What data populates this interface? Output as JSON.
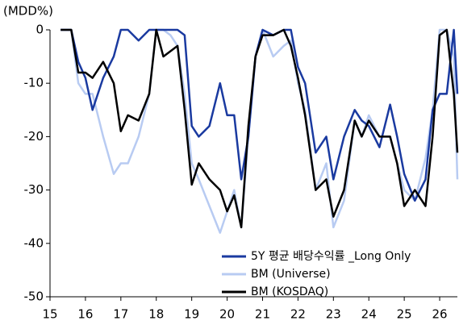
{
  "chart_data": {
    "type": "line",
    "y_label": "(MDD%)",
    "x": [
      15.3,
      15.6,
      15.8,
      16.0,
      16.2,
      16.5,
      16.8,
      17.0,
      17.2,
      17.5,
      17.8,
      18.0,
      18.2,
      18.4,
      18.6,
      18.8,
      19.0,
      19.2,
      19.5,
      19.8,
      20.0,
      20.2,
      20.4,
      20.6,
      20.8,
      21.0,
      21.3,
      21.6,
      21.8,
      22.0,
      22.2,
      22.5,
      22.8,
      23.0,
      23.3,
      23.6,
      23.8,
      24.0,
      24.3,
      24.6,
      24.8,
      25.0,
      25.3,
      25.6,
      25.8,
      26.0,
      26.2,
      26.4,
      26.5
    ],
    "series": [
      {
        "name": "5Y 평균 배당수익률 _Long Only",
        "color": "#1a3aa0",
        "values": [
          0,
          0,
          -6,
          -9,
          -15,
          -9,
          -5,
          0,
          0,
          -2,
          0,
          0,
          0,
          0,
          0,
          -1,
          -18,
          -20,
          -18,
          -10,
          -16,
          -16,
          -28,
          -20,
          -5,
          0,
          -1,
          0,
          0,
          -7,
          -10,
          -23,
          -20,
          -28,
          -20,
          -15,
          -17,
          -18,
          -22,
          -14,
          -20,
          -27,
          -32,
          -28,
          -15,
          -12,
          -12,
          0,
          -12
        ]
      },
      {
        "name": "BM (Universe)",
        "color": "#b8cbf2",
        "values": [
          0,
          0,
          -10,
          -12,
          -12,
          -20,
          -27,
          -25,
          -25,
          -20,
          -12,
          0,
          0,
          -1,
          -3,
          -12,
          -25,
          -28,
          -33,
          -38,
          -34,
          -30,
          -37,
          -20,
          -5,
          0,
          -5,
          -3,
          -2,
          -10,
          -15,
          -30,
          -25,
          -37,
          -32,
          -17,
          -20,
          -16,
          -20,
          -20,
          -25,
          -30,
          -32,
          -24,
          -15,
          0,
          0,
          -5,
          -28
        ]
      },
      {
        "name": "BM (KOSDAQ)",
        "color": "#000000",
        "values": [
          0,
          0,
          -8,
          -8,
          -9,
          -6,
          -10,
          -19,
          -16,
          -17,
          -12,
          0,
          -5,
          -4,
          -3,
          -15,
          -29,
          -25,
          -28,
          -30,
          -34,
          -31,
          -37,
          -18,
          -5,
          -1,
          -1,
          0,
          -3,
          -9,
          -16,
          -30,
          -28,
          -35,
          -30,
          -17,
          -20,
          -17,
          -20,
          -20,
          -25,
          -33,
          -30,
          -33,
          -20,
          -1,
          0,
          -12,
          -23
        ]
      }
    ],
    "xlim": [
      15,
      26.5
    ],
    "xticks": [
      15,
      16,
      17,
      18,
      19,
      20,
      21,
      22,
      23,
      24,
      25,
      26
    ],
    "ylim": [
      -50,
      0
    ],
    "yticks": [
      0,
      -10,
      -20,
      -30,
      -40,
      -50
    ],
    "legend": "lower right"
  }
}
